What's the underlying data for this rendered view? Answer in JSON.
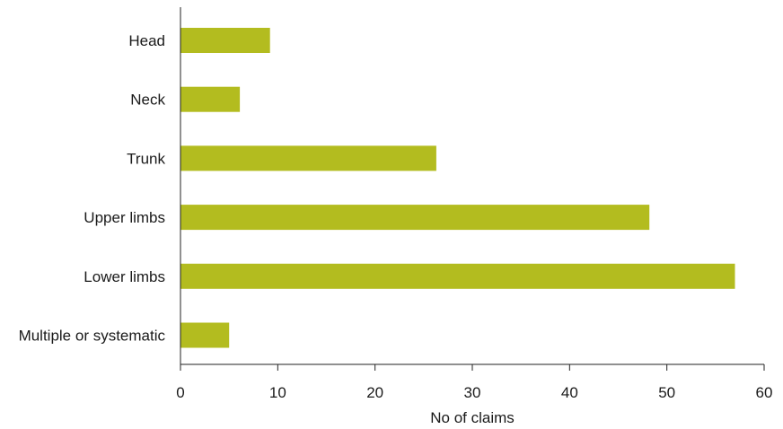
{
  "chart_data": {
    "type": "bar",
    "orientation": "horizontal",
    "categories": [
      "Head",
      "Neck",
      "Trunk",
      "Upper limbs",
      "Lower limbs",
      "Multiple or systematic"
    ],
    "values": [
      9.2,
      6.1,
      26.3,
      48.2,
      57.0,
      5.0
    ],
    "title": "",
    "xlabel": "No of claims",
    "ylabel": "",
    "xlim": [
      0,
      60
    ],
    "xticks": [
      0,
      10,
      20,
      30,
      40,
      50,
      60
    ],
    "grid": false,
    "bar_color": "#b3bc1f"
  }
}
